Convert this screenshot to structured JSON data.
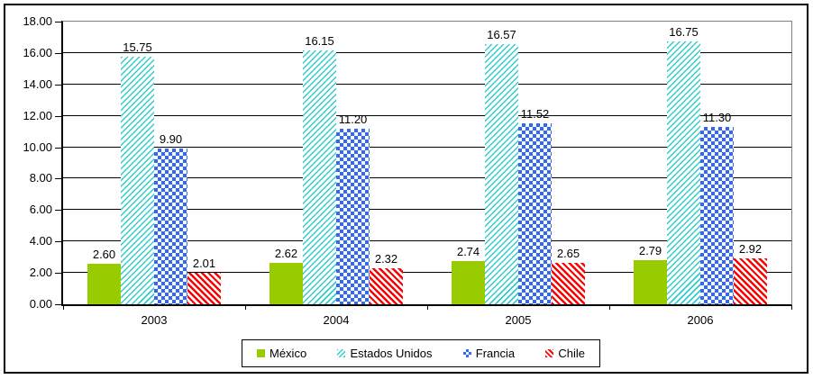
{
  "chart": {
    "background_color": "#FFFFFF",
    "outer_border_color": "#000000",
    "plot_border_color": "#808080",
    "gridline_color": "#000000",
    "axis_color": "#000000",
    "text_color": "#000000"
  },
  "chart_data": {
    "type": "bar",
    "title": "",
    "xlabel": "",
    "ylabel": "",
    "categories": [
      "2003",
      "2004",
      "2005",
      "2006"
    ],
    "series": [
      {
        "name": "México",
        "pattern": "solid",
        "color": "#99CC00",
        "values": [
          2.6,
          2.62,
          2.74,
          2.79
        ]
      },
      {
        "name": "Estados Unidos",
        "pattern": "diag-up",
        "color": "#33CCCC",
        "values": [
          15.75,
          16.15,
          16.57,
          16.75
        ]
      },
      {
        "name": "Francia",
        "pattern": "checker",
        "color": "#3366FF",
        "values": [
          9.9,
          11.2,
          11.52,
          11.3
        ]
      },
      {
        "name": "Chile",
        "pattern": "diag-down",
        "color": "#FF0000",
        "values": [
          2.01,
          2.32,
          2.65,
          2.92
        ]
      }
    ],
    "ylim": [
      0,
      18
    ],
    "ytick_step": 2,
    "ytick_decimals": 2,
    "data_label_decimals": 2,
    "grid": true,
    "data_labels": true,
    "legend_position": "bottom"
  }
}
